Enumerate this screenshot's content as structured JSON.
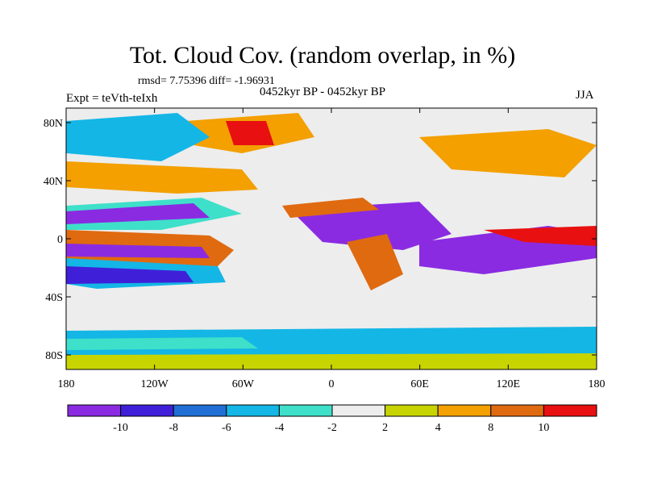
{
  "title": "Tot. Cloud Cov. (random overlap, in %)",
  "stats": "rmsd= 7.75396 diff= -1.96931",
  "period": "0452kyr BP - 0452kyr BP",
  "experiment": "Expt = teVth-teIxh",
  "season": "JJA",
  "map": {
    "lat_ticks": [
      {
        "value": 80,
        "label": "80N"
      },
      {
        "value": 40,
        "label": "40N"
      },
      {
        "value": 0,
        "label": "0"
      },
      {
        "value": -40,
        "label": "40S"
      },
      {
        "value": -80,
        "label": "80S"
      }
    ],
    "lon_ticks": [
      {
        "value": -180,
        "label": "180"
      },
      {
        "value": -120,
        "label": "120W"
      },
      {
        "value": -60,
        "label": "60W"
      },
      {
        "value": 0,
        "label": "0"
      },
      {
        "value": 60,
        "label": "60E"
      },
      {
        "value": 120,
        "label": "120E"
      },
      {
        "value": 180,
        "label": "180"
      }
    ],
    "lon_range": [
      -180,
      180
    ],
    "lat_range": [
      -90,
      90
    ]
  },
  "colorbar": {
    "colors": [
      "#8a2be2",
      "#3f20d8",
      "#1f6fd6",
      "#14b6e6",
      "#3ee0c9",
      "#ededed",
      "#c8d400",
      "#f3a000",
      "#e06a10",
      "#e81010"
    ],
    "labels": [
      "-10",
      "-8",
      "-6",
      "-4",
      "-2",
      "2",
      "4",
      "8",
      "10"
    ]
  }
}
